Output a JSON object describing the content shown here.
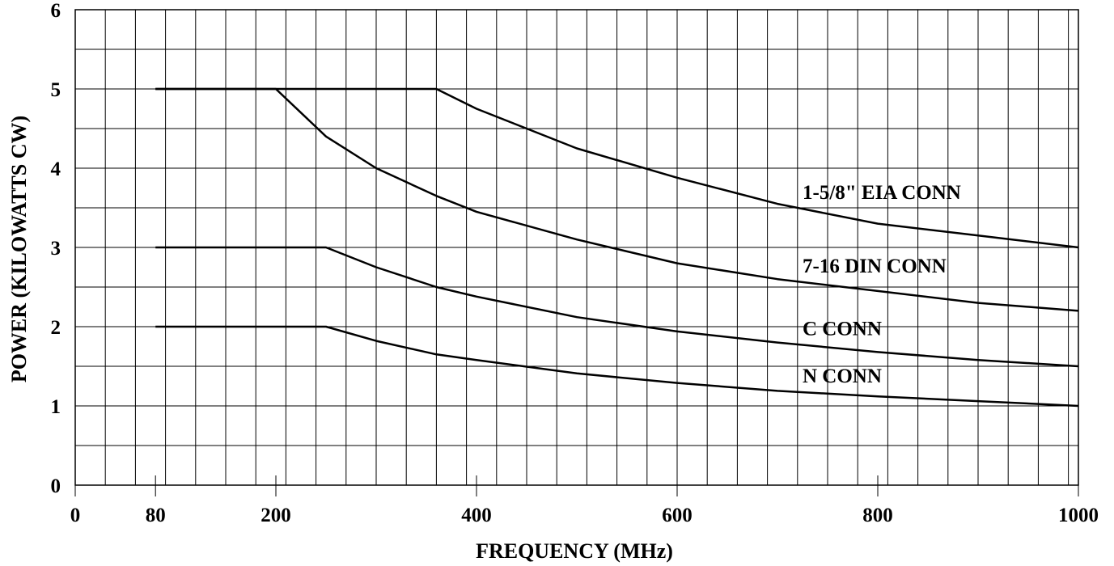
{
  "chart_data": {
    "type": "line",
    "xlabel": "FREQUENCY (MHz)",
    "ylabel": "POWER (KILOWATTS CW)",
    "xlim": [
      0,
      1000
    ],
    "ylim": [
      0,
      6
    ],
    "x_ticks": [
      {
        "value": 0,
        "label": "0"
      },
      {
        "value": 80,
        "label": "80"
      },
      {
        "value": 200,
        "label": "200"
      },
      {
        "value": 400,
        "label": "400"
      },
      {
        "value": 600,
        "label": "600"
      },
      {
        "value": 800,
        "label": "800"
      },
      {
        "value": 1000,
        "label": "1000"
      }
    ],
    "y_ticks": [
      {
        "value": 0,
        "label": "0"
      },
      {
        "value": 1,
        "label": "1"
      },
      {
        "value": 2,
        "label": "2"
      },
      {
        "value": 3,
        "label": "3"
      },
      {
        "value": 4,
        "label": "4"
      },
      {
        "value": 5,
        "label": "5"
      },
      {
        "value": 6,
        "label": "6"
      }
    ],
    "grid": true,
    "x_grid_step": 30,
    "y_grid_step": 0.5,
    "series": [
      {
        "name": "1-5/8\" EIA CONN",
        "x": [
          80,
          360,
          400,
          500,
          600,
          700,
          800,
          900,
          1000
        ],
        "y": [
          5,
          5,
          4.75,
          4.25,
          3.88,
          3.55,
          3.3,
          3.15,
          3.0
        ]
      },
      {
        "name": "7-16 DIN CONN",
        "x": [
          80,
          200,
          250,
          300,
          360,
          400,
          500,
          600,
          700,
          800,
          900,
          1000
        ],
        "y": [
          5,
          5,
          4.4,
          4.0,
          3.65,
          3.45,
          3.1,
          2.8,
          2.6,
          2.45,
          2.3,
          2.2
        ]
      },
      {
        "name": "C CONN",
        "x": [
          80,
          250,
          300,
          360,
          400,
          500,
          600,
          700,
          800,
          900,
          1000
        ],
        "y": [
          3,
          3,
          2.75,
          2.5,
          2.38,
          2.12,
          1.94,
          1.8,
          1.68,
          1.58,
          1.5
        ]
      },
      {
        "name": "N CONN",
        "x": [
          80,
          250,
          300,
          360,
          400,
          500,
          600,
          700,
          800,
          900,
          1000
        ],
        "y": [
          2,
          2,
          1.82,
          1.65,
          1.58,
          1.41,
          1.29,
          1.19,
          1.12,
          1.06,
          1.0
        ]
      }
    ]
  }
}
